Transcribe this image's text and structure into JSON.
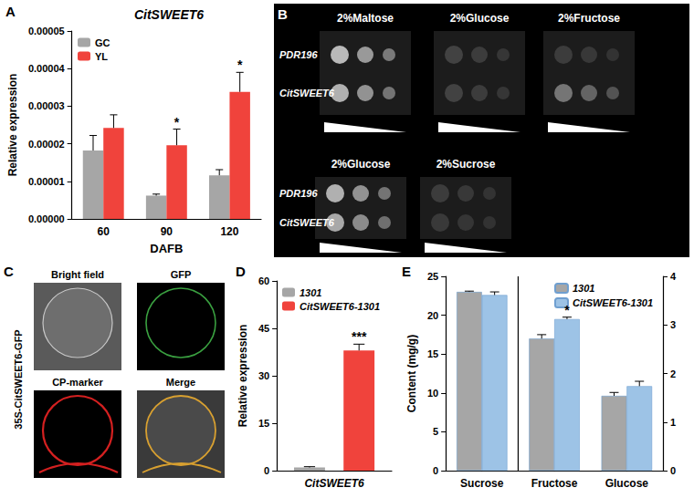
{
  "chart_data": [
    {
      "panel": "A",
      "type": "bar",
      "title": "CitSWEET6",
      "x_label": "DAFB",
      "y_label": "Relative expression",
      "categories": [
        "60",
        "90",
        "120"
      ],
      "series": [
        {
          "name": "GC",
          "color": "#a6a6a6",
          "values": [
            1.82e-05,
            6.2e-06,
            1.16e-05
          ],
          "errors": [
            4e-06,
            4e-07,
            1.5e-06
          ],
          "significance": [
            null,
            null,
            null
          ]
        },
        {
          "name": "YL",
          "color": "#f0433c",
          "values": [
            2.42e-05,
            1.96e-05,
            3.38e-05
          ],
          "errors": [
            3.5e-06,
            4.3e-06,
            5.2e-06
          ],
          "significance": [
            null,
            "*",
            "*"
          ]
        }
      ],
      "ylim": [
        0,
        5e-05
      ],
      "yticks": [
        {
          "value": 0,
          "label": "0.00000"
        },
        {
          "value": 1e-05,
          "label": "0.00001"
        },
        {
          "value": 2e-05,
          "label": "0.00002"
        },
        {
          "value": 3e-05,
          "label": "0.00003"
        },
        {
          "value": 4e-05,
          "label": "0.00004"
        },
        {
          "value": 5e-05,
          "label": "0.00005"
        }
      ],
      "legend": "upper left",
      "grid": false
    },
    {
      "panel": "D",
      "type": "bar",
      "y_label": "Relative expression",
      "categories": [
        "CitSWEET6"
      ],
      "series": [
        {
          "name": "1301",
          "color": "#a6a6a6",
          "values": [
            1.0
          ],
          "errors": [
            0.25
          ],
          "significance": [
            null
          ]
        },
        {
          "name": "CitSWEET6-1301",
          "color": "#f0433c",
          "values": [
            38.0
          ],
          "errors": [
            2.0
          ],
          "significance": [
            "***"
          ]
        }
      ],
      "ylim": [
        0,
        60
      ],
      "yticks": [
        0,
        15,
        30,
        45,
        60
      ],
      "legend": "upper left",
      "grid": false
    },
    {
      "panel": "E",
      "type": "bar",
      "y_label": "Content (mg/g)",
      "categories": [
        "Sucrose",
        "Fructose",
        "Glucose"
      ],
      "series": [
        {
          "name": "1301",
          "color": "#a6a6a6",
          "axis": "y",
          "values": [
            23.0,
            null,
            null
          ],
          "errors": [
            0.1,
            null,
            null
          ],
          "significance": [
            null,
            null,
            null
          ]
        },
        {
          "name": "CitSWEET6-1301",
          "color": "#9dc3e6",
          "axis": "y",
          "values": [
            22.6,
            null,
            null
          ],
          "errors": [
            0.4,
            null,
            null
          ],
          "significance": [
            null,
            null,
            null
          ]
        },
        {
          "name": "1301",
          "color": "#a6a6a6",
          "axis": "y2",
          "values": [
            null,
            2.72,
            1.54
          ],
          "errors": [
            null,
            0.08,
            0.07
          ],
          "significance": [
            null,
            null,
            null
          ]
        },
        {
          "name": "CitSWEET6-1301",
          "color": "#9dc3e6",
          "axis": "y2",
          "values": [
            null,
            3.12,
            1.74
          ],
          "errors": [
            null,
            0.04,
            0.1
          ],
          "significance": [
            null,
            "*",
            null
          ]
        }
      ],
      "ylim": [
        0,
        25
      ],
      "yticks": [
        0,
        5,
        10,
        15,
        20,
        25
      ],
      "y2lim": [
        0,
        4
      ],
      "y2ticks": [
        0,
        1,
        2,
        3,
        4
      ],
      "legend": "upper right",
      "grid": false
    }
  ],
  "images": [
    {
      "panel": "B",
      "groups": [
        {
          "columns": [
            "2%Maltose",
            "2%Glucose",
            "2%Fructose"
          ],
          "rows": [
            "PDR196",
            "CitSWEET6"
          ]
        },
        {
          "columns": [
            "2%Glucose",
            "2%Sucrose"
          ],
          "rows": [
            "PDR196",
            "CitSWEET6"
          ]
        }
      ]
    },
    {
      "panel": "C",
      "title": "35S-CitSWEET6-GFP",
      "images": [
        "Bright field",
        "GFP",
        "CP-marker",
        "Merge"
      ]
    }
  ]
}
